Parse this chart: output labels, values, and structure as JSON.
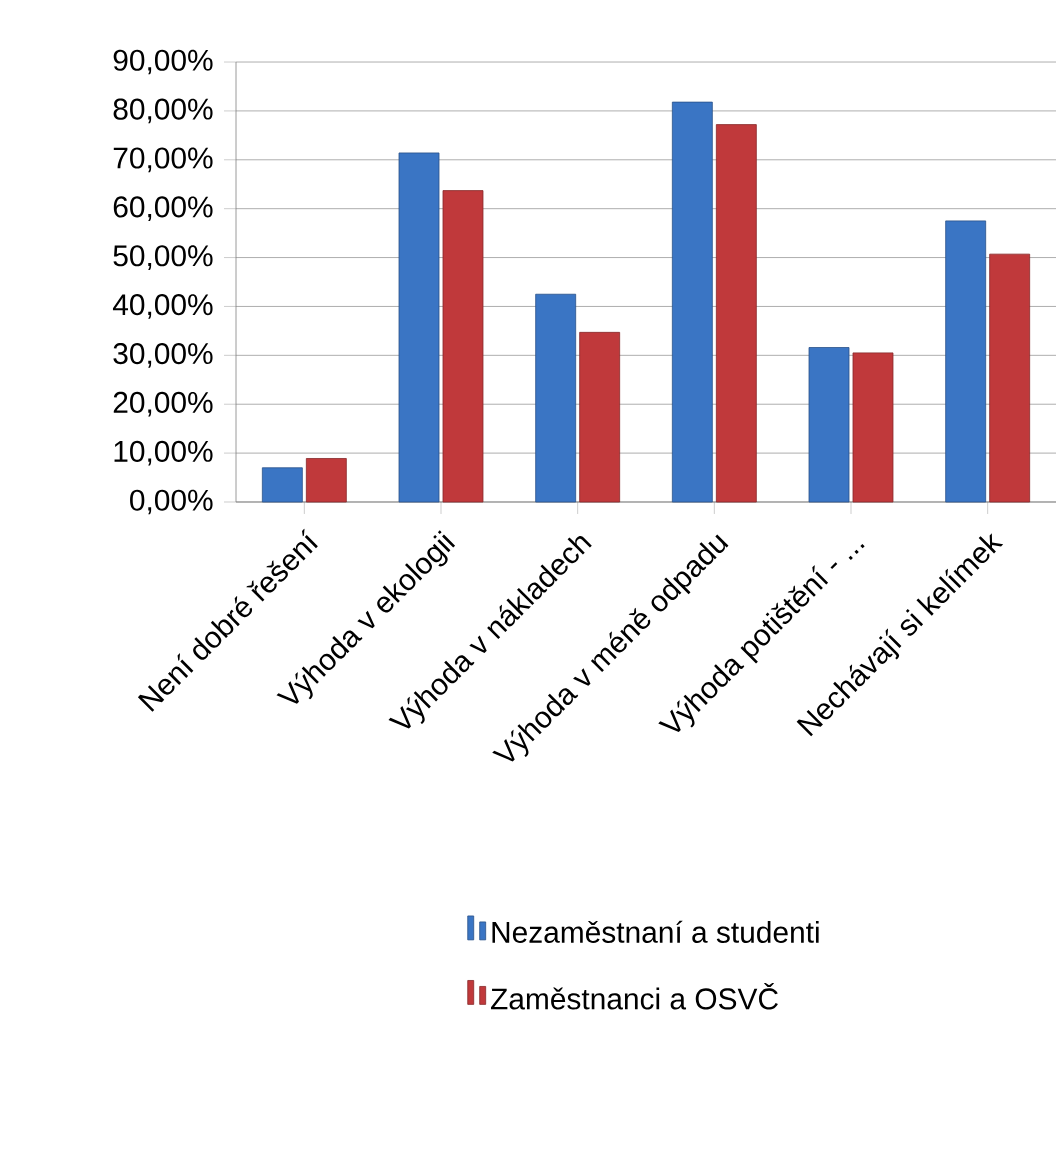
{
  "chart_data": {
    "type": "bar",
    "categories": [
      "Není dobré řešení",
      "Výhoda v ekologii",
      "Výhoda v nákladech",
      "Výhoda v méně odpadu",
      "Výhoda potištění - ...",
      "Nechávají si kelímek"
    ],
    "series": [
      {
        "name": "Nezaměstnaní a studenti",
        "color": "#3a75c4",
        "values": [
          7.0,
          71.4,
          42.5,
          81.8,
          31.6,
          57.5
        ]
      },
      {
        "name": "Zaměstnanci a OSVČ",
        "color": "#c0393b",
        "values": [
          8.9,
          63.7,
          34.7,
          77.2,
          30.5,
          50.7
        ]
      }
    ],
    "ylim": [
      0,
      90
    ],
    "yticks": [
      {
        "value": 0,
        "label": "0,00%"
      },
      {
        "value": 10,
        "label": "10,00%"
      },
      {
        "value": 20,
        "label": "20,00%"
      },
      {
        "value": 30,
        "label": "30,00%"
      },
      {
        "value": 40,
        "label": "40,00%"
      },
      {
        "value": 50,
        "label": "50,00%"
      },
      {
        "value": 60,
        "label": "60,00%"
      },
      {
        "value": 70,
        "label": "70,00%"
      },
      {
        "value": 80,
        "label": "80,00%"
      },
      {
        "value": 90,
        "label": "90,00%"
      }
    ],
    "grid": "y",
    "legend": "bottom"
  }
}
